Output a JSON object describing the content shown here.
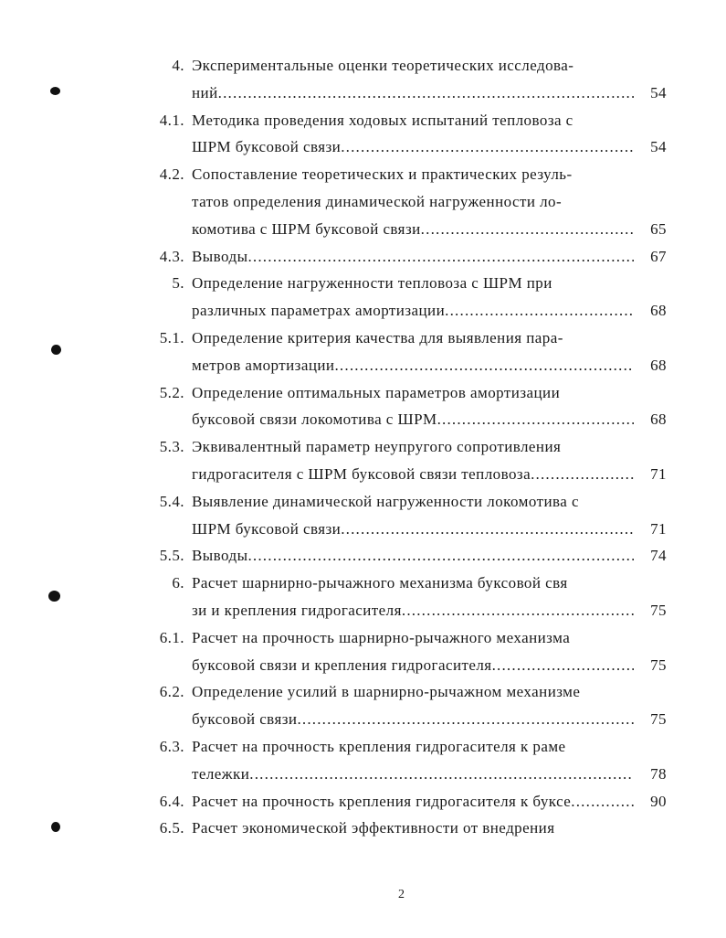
{
  "toc": [
    {
      "num": "4.",
      "lines": [
        "Экспериментальные оценки теоретических исследова-",
        "ний"
      ],
      "page": "54"
    },
    {
      "num": "4.1.",
      "lines": [
        "Методика проведения ходовых испытаний тепловоза с",
        "ШРМ буксовой связи"
      ],
      "page": "54"
    },
    {
      "num": "4.2.",
      "lines": [
        "Сопоставление теоретических и практических резуль-",
        "татов определения динамической нагруженности ло-",
        "комотива с ШРМ буксовой связи"
      ],
      "page": "65"
    },
    {
      "num": "4.3.",
      "lines": [
        "Выводы"
      ],
      "page": "67"
    },
    {
      "num": "5.",
      "lines": [
        "Определение нагруженности тепловоза с ШРМ при",
        "различных параметрах амортизации"
      ],
      "page": "68"
    },
    {
      "num": "5.1.",
      "lines": [
        "Определение критерия качества для выявления пара-",
        "метров амортизации"
      ],
      "page": "68"
    },
    {
      "num": "5.2.",
      "lines": [
        "Определение оптимальных параметров амортизации",
        "буксовой связи локомотива с ШРМ"
      ],
      "page": "68"
    },
    {
      "num": "5.3.",
      "lines": [
        "Эквивалентный параметр неупругого сопротивления",
        "гидрогасителя с ШРМ буксовой связи тепловоза"
      ],
      "page": "71"
    },
    {
      "num": "5.4.",
      "lines": [
        "Выявление динамической нагруженности локомотива с",
        "ШРМ буксовой связи"
      ],
      "page": "71"
    },
    {
      "num": "5.5.",
      "lines": [
        "Выводы"
      ],
      "page": "74"
    },
    {
      "num": "6.",
      "lines": [
        "Расчет шарнирно-рычажного механизма буксовой свя",
        "зи и крепления гидрогасителя"
      ],
      "page": "75"
    },
    {
      "num": "6.1.",
      "lines": [
        "Расчет на прочность шарнирно-рычажного механизма",
        "буксовой связи и крепления гидрогасителя"
      ],
      "page": "75"
    },
    {
      "num": "6.2.",
      "lines": [
        "Определение усилий в шарнирно-рычажном механизме",
        "буксовой связи"
      ],
      "page": "75"
    },
    {
      "num": "6.3.",
      "lines": [
        "Расчет на прочность крепления гидрогасителя к раме",
        "тележки"
      ],
      "page": "78"
    },
    {
      "num": "6.4.",
      "lines": [
        "Расчет на прочность крепления гидрогасителя к буксе"
      ],
      "page": "90"
    },
    {
      "num": "6.5.",
      "lines": [
        "Расчет экономической эффективности от внедрения"
      ],
      "page": ""
    }
  ],
  "page_number": "2"
}
